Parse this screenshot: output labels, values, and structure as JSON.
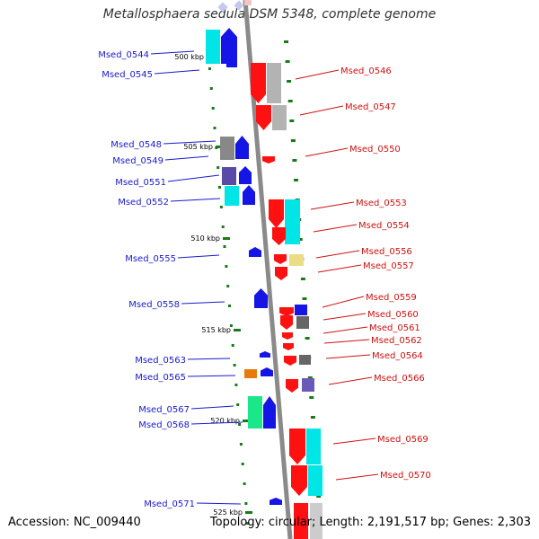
{
  "title": "Metallosphaera sedula DSM 5348, complete genome",
  "accession_text": "Accession: NC_009440",
  "summary_text": "Topology: circular; Length: 2,191,517 bp; Genes: 2,303",
  "colors": {
    "forward_label": "#1a1acc",
    "reverse_label": "#cc1111",
    "backbone": "#8a8a8a",
    "tick": "#1a7a1a"
  },
  "scale_labels": [
    "500 kbp",
    "505 kbp",
    "510 kbp",
    "515 kbp",
    "520 kbp",
    "525 kbp"
  ],
  "forward_genes": [
    "Msed_0544",
    "Msed_0545",
    "Msed_0548",
    "Msed_0549",
    "Msed_0551",
    "Msed_0552",
    "Msed_0555",
    "Msed_0558",
    "Msed_0563",
    "Msed_0565",
    "Msed_0567",
    "Msed_0568",
    "Msed_0571"
  ],
  "reverse_genes": [
    "Msed_0546",
    "Msed_0547",
    "Msed_0550",
    "Msed_0553",
    "Msed_0554",
    "Msed_0556",
    "Msed_0557",
    "Msed_0559",
    "Msed_0560",
    "Msed_0561",
    "Msed_0562",
    "Msed_0564",
    "Msed_0566",
    "Msed_0569",
    "Msed_0570"
  ]
}
